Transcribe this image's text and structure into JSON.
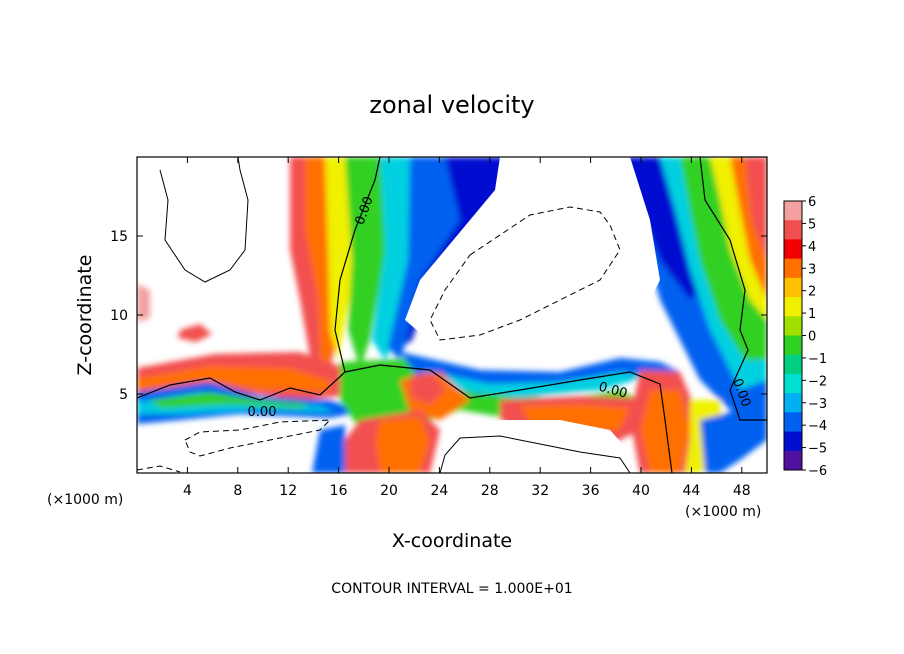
{
  "chart_data": {
    "type": "heatmap",
    "title": "zonal velocity",
    "xlabel": "X-coordinate",
    "ylabel": "Z-coordinate",
    "x_unit_label": "(×1000 m)",
    "z_unit_label": "(×1000 m)",
    "xlim": [
      0,
      50
    ],
    "ylim": [
      0,
      20
    ],
    "x_ticks": [
      4,
      8,
      12,
      16,
      20,
      24,
      28,
      32,
      36,
      40,
      44,
      48
    ],
    "y_ticks": [
      5,
      10,
      15
    ],
    "colorbar": {
      "ticks": [
        6,
        5,
        4,
        3,
        2,
        1,
        0,
        -1,
        -2,
        -3,
        -4,
        -5,
        -6
      ],
      "tick_labels": [
        "6",
        "5",
        "4",
        "3",
        "2",
        "1",
        "0",
        "−1",
        "−2",
        "−3",
        "−4",
        "−5",
        "−6"
      ],
      "colors": [
        "#f2a0a0",
        "#f25050",
        "#f00000",
        "#ff7000",
        "#ffc000",
        "#f0f000",
        "#a0e000",
        "#30d020",
        "#00d080",
        "#00e0d0",
        "#00b0f0",
        "#0060f0",
        "#0010d0",
        "#5010a0"
      ]
    },
    "contour_labels": [
      "0.00",
      "0.00",
      "0.00",
      "0.00"
    ],
    "contour_interval_text": "CONTOUR INTERVAL = 1.000E+01"
  }
}
